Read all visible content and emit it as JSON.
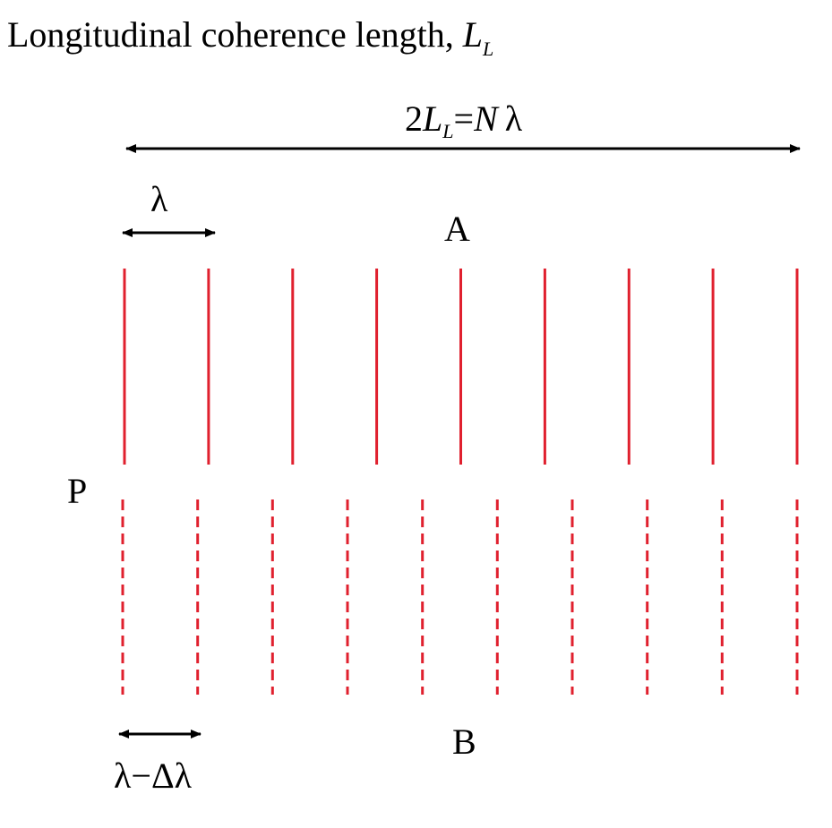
{
  "title": {
    "text": "Longitudinal coherence length, ",
    "symbol_main": "L",
    "symbol_sub": "L"
  },
  "labels": {
    "total": {
      "prefix": "2",
      "symbol_main": "L",
      "symbol_sub": "L",
      "rest": "=",
      "n": "N",
      "lambda": "λ"
    },
    "lambda": "λ",
    "a": "A",
    "p": "P",
    "b": "B",
    "lambda_minus": "λ−Δλ"
  },
  "colors": {
    "wavefront": "#e0202e",
    "ink": "#000000"
  },
  "wave_a": {
    "count": 9,
    "style": "solid"
  },
  "wave_b": {
    "count": 10,
    "style": "dashed"
  }
}
